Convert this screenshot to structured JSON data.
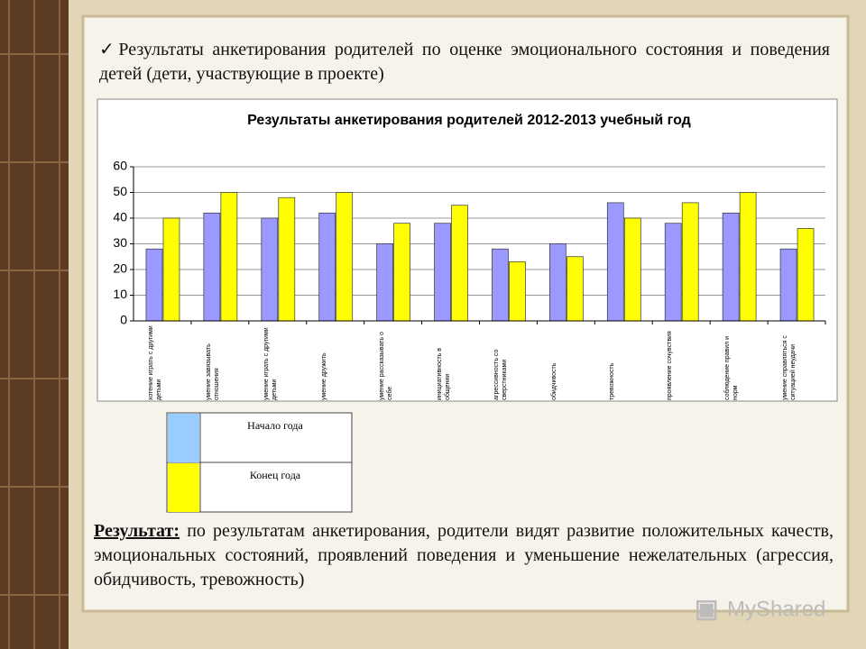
{
  "header": {
    "text": "Результаты анкетирования родителей по оценке эмоционального состояния и поведения детей (дети, участвующие в проекте)"
  },
  "chart_data": {
    "type": "bar",
    "title": "Результаты анкетирования родителей 2012-2013 учебный год",
    "categories": [
      "хотение играть с другими детьми",
      "умение завязывать отношения",
      "умение играть с другими детьми",
      "умение дружить",
      "умение рассказывать о себе",
      "инициативность в общении",
      "агрессивность со сверстниками",
      "обидчивость",
      "тревожность",
      "проявление сочувствия",
      "соблюдение правил и норм",
      "умение справляться с ситуацией неудачи"
    ],
    "series": [
      {
        "name": "Начало года",
        "color": "#9999ff",
        "legend_color": "#99ccff",
        "values": [
          28,
          42,
          40,
          42,
          30,
          38,
          28,
          30,
          46,
          38,
          42,
          28
        ]
      },
      {
        "name": "Конец года",
        "color": "#ffff00",
        "legend_color": "#ffff00",
        "values": [
          40,
          50,
          48,
          50,
          38,
          45,
          23,
          25,
          40,
          46,
          50,
          36
        ]
      }
    ],
    "ylim": [
      0,
      60
    ],
    "yticks": [
      0,
      10,
      20,
      30,
      40,
      50,
      60
    ],
    "grid": true
  },
  "result": {
    "label": "Результат:",
    "text": "по результатам анкетирования, родители видят развитие положительных качеств, эмоциональных состояний, проявлений поведения и уменьшение нежелательных (агрессия, обидчивость, тревожность)"
  },
  "watermark": "MyShared"
}
